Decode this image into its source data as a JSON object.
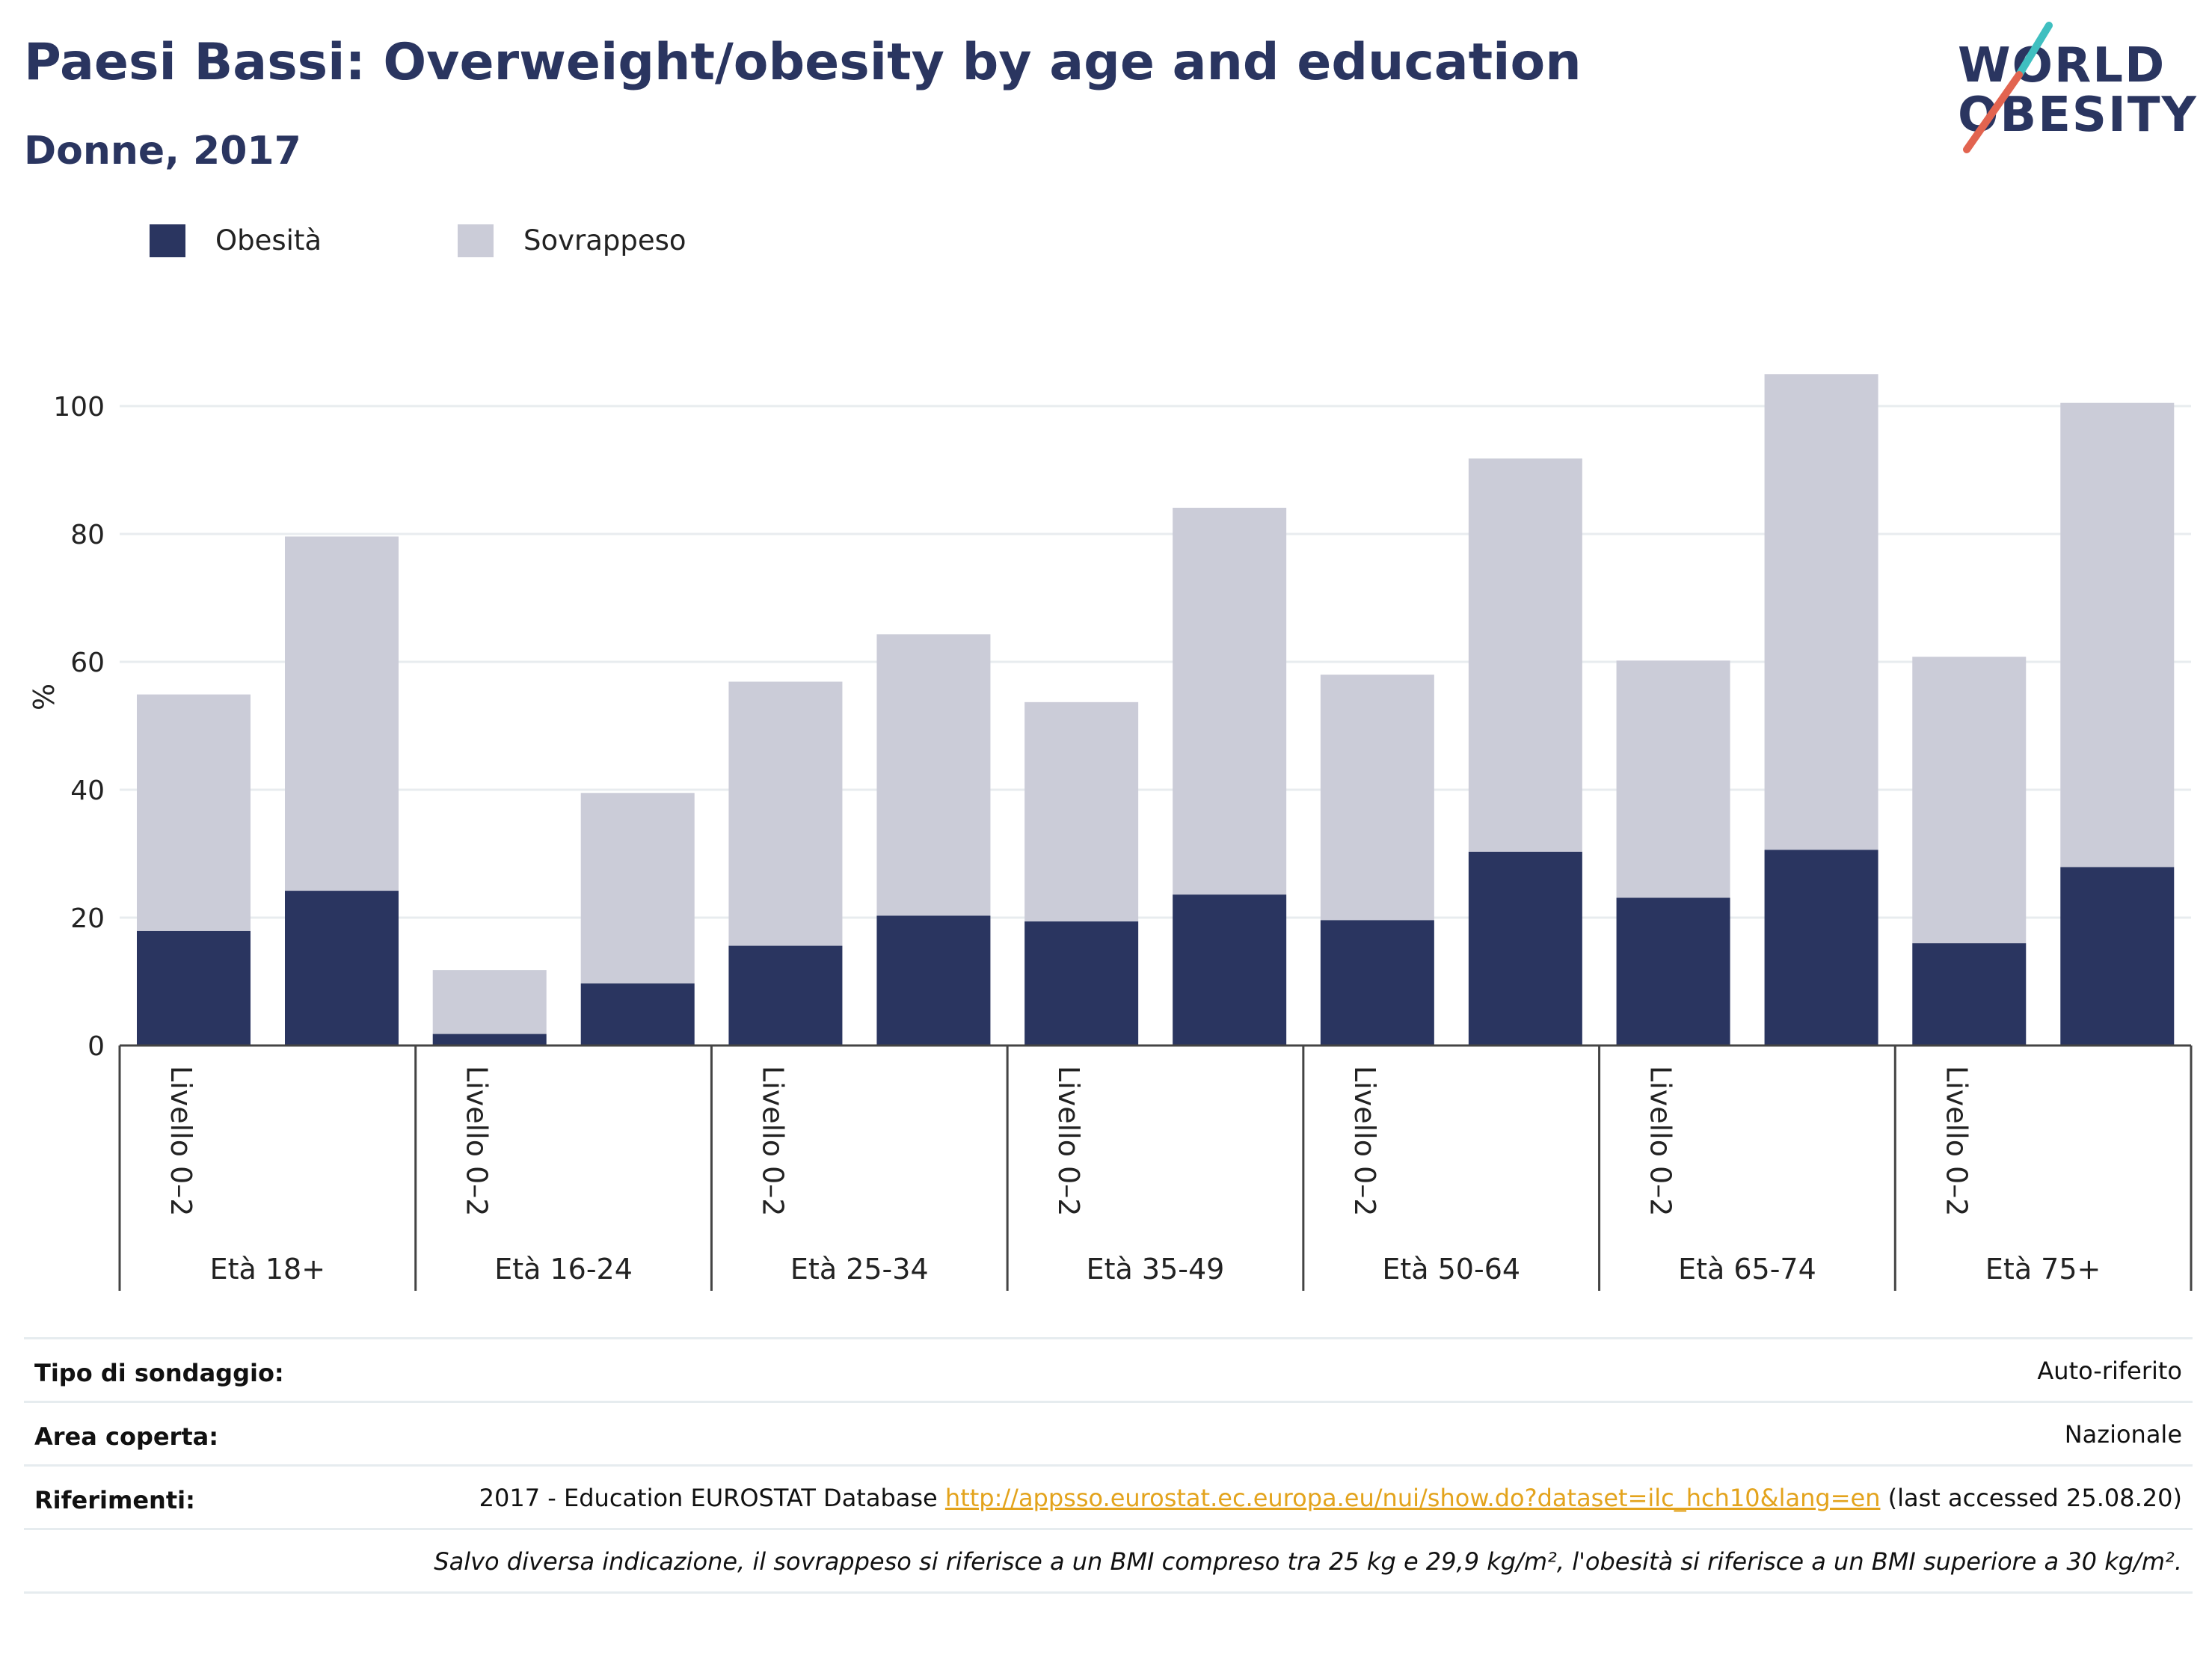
{
  "title": "Paesi Bassi: Overweight/obesity by age and education",
  "subtitle": "Donne, 2017",
  "logo": {
    "line1": "WORLD",
    "line2": "OBESITY"
  },
  "colors": {
    "obesity": "#2a3560",
    "overweight": "#cbccd8",
    "title": "#2a3560",
    "link": "#e3a31c",
    "logo_slash_teal": "#3fbfc0",
    "logo_slash_red": "#e26450"
  },
  "chart_data": {
    "type": "bar",
    "stacked": true,
    "ylabel": "%",
    "ylim": [
      0,
      105
    ],
    "yticks": [
      0,
      20,
      40,
      60,
      80,
      100
    ],
    "grid": true,
    "legend_position": "top-left",
    "groups": [
      "Età 18+",
      "Età 16-24",
      "Età 25-34",
      "Età 35-49",
      "Età 50-64",
      "Età 65-74",
      "Età 75+"
    ],
    "bar_labels": [
      "Livello 0–2",
      "",
      "Livello 0–2",
      "",
      "Livello 0–2",
      "",
      "Livello 0–2",
      "",
      "Livello 0–2",
      "",
      "Livello 0–2",
      "",
      "Livello 0–2",
      ""
    ],
    "series": [
      {
        "name": "Obesità",
        "values": [
          17.9,
          24.2,
          1.8,
          9.7,
          15.6,
          20.3,
          19.4,
          23.6,
          19.6,
          30.3,
          23.1,
          30.6,
          16.0,
          27.9
        ]
      },
      {
        "name": "Sovrappeso",
        "values": [
          37.0,
          55.4,
          10.0,
          29.8,
          41.3,
          44.0,
          34.3,
          60.5,
          38.4,
          61.5,
          37.1,
          74.4,
          44.8,
          72.6
        ]
      }
    ]
  },
  "info": {
    "survey_label": "Tipo di sondaggio:",
    "survey_value": "Auto-riferito",
    "area_label": "Area coperta:",
    "area_value": "Nazionale",
    "ref_label": "Riferimenti:",
    "ref_prefix": "2017 - Education EUROSTAT Database ",
    "ref_link": "http://appsso.eurostat.ec.europa.eu/nui/show.do?dataset=ilc_hch10&lang=en",
    "ref_suffix": " (last accessed 25.08.20)",
    "note": "Salvo diversa indicazione, il sovrappeso si riferisce a un BMI compreso tra 25 kg e 29,9 kg/m², l'obesità si riferisce a un BMI superiore a 30 kg/m²."
  }
}
